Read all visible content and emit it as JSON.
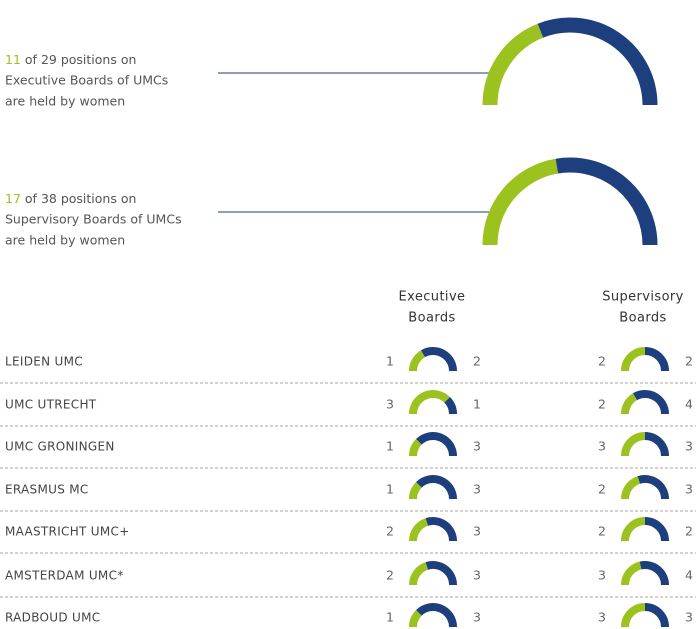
{
  "summary": [
    {
      "women": 11,
      "of": "of",
      "total": 29,
      "rest": "positions on",
      "line2": "Executive Boards of UMCs",
      "line3": "are held by women"
    },
    {
      "women": 17,
      "of": "of",
      "total": 38,
      "rest": "positions on",
      "line2": "Supervisory Boards of UMCs",
      "line3": "are held by women"
    }
  ],
  "table": {
    "headers": [
      [
        "Executive",
        "Boards"
      ],
      [
        "Supervisory",
        "Boards"
      ]
    ],
    "rows": [
      {
        "name": "LEIDEN UMC",
        "exec": [
          1,
          2
        ],
        "sup": [
          2,
          2
        ]
      },
      {
        "name": "UMC UTRECHT",
        "exec": [
          3,
          1
        ],
        "sup": [
          2,
          4
        ]
      },
      {
        "name": "UMC GRONINGEN",
        "exec": [
          1,
          3
        ],
        "sup": [
          3,
          3
        ]
      },
      {
        "name": "ERASMUS MC",
        "exec": [
          1,
          3
        ],
        "sup": [
          2,
          3
        ]
      },
      {
        "name": "MAASTRICHT UMC+",
        "exec": [
          2,
          3
        ],
        "sup": [
          2,
          2
        ]
      },
      {
        "name": "AMSTERDAM UMC*",
        "exec": [
          2,
          3
        ],
        "sup": [
          3,
          4
        ]
      },
      {
        "name": "RADBOUD UMC",
        "exec": [
          1,
          3
        ],
        "sup": [
          3,
          3
        ]
      }
    ]
  }
}
